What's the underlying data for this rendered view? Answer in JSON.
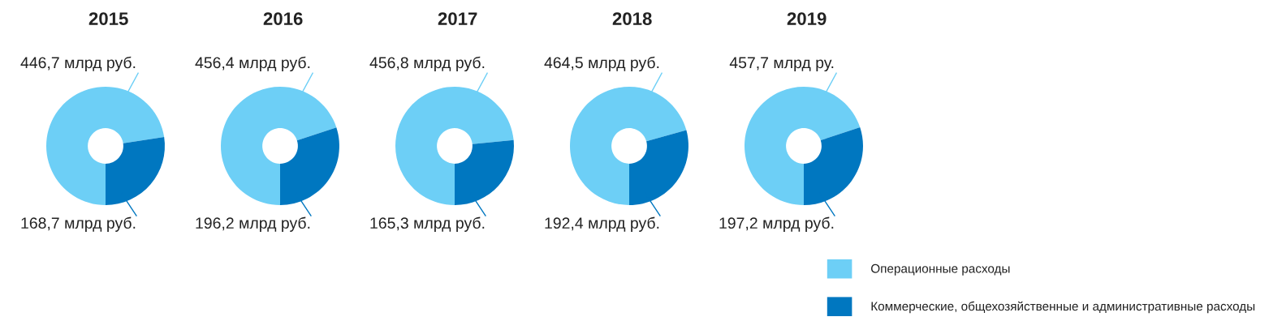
{
  "chart_data": [
    {
      "type": "donut",
      "title": "2015",
      "categories": [
        "Операционные расходы",
        "Коммерческие, общехозяйственные и административные расходы"
      ],
      "values": [
        446.7,
        168.7
      ],
      "colors": [
        "#6dcff6",
        "#0077c0"
      ],
      "value_labels": [
        "446,7 млрд руб.",
        "168,7 млрд руб."
      ],
      "legend": "right"
    },
    {
      "type": "donut",
      "title": "2016",
      "categories": [
        null,
        null
      ],
      "values": [
        456.4,
        196.2
      ],
      "colors": [
        "#6dcff6",
        "#0077c0"
      ],
      "value_labels": [
        "456,4 млрд руб.",
        "196,2 млрд руб."
      ]
    },
    {
      "type": "donut",
      "title": "2017",
      "categories": [
        null,
        null
      ],
      "values": [
        456.8,
        165.3
      ],
      "colors": [
        "#6dcff6",
        "#0077c0"
      ],
      "value_labels": [
        "456,8 млрд руб.",
        "165,3 млрд руб."
      ]
    },
    {
      "type": "donut",
      "title": "2018",
      "categories": [
        null,
        null
      ],
      "values": [
        464.5,
        192.4
      ],
      "colors": [
        "#6dcff6",
        "#0077c0"
      ],
      "value_labels": [
        "464,5 млрд руб.",
        "192,4 млрд руб."
      ]
    },
    {
      "type": "donut",
      "title": "2019",
      "categories": [
        null,
        null
      ],
      "values": [
        457.7,
        197.2
      ],
      "colors": [
        "#6dcff6",
        "#0077c0"
      ],
      "value_labels": [
        "457,7 млрд ру.",
        "197,2 млрд руб."
      ]
    }
  ]
}
